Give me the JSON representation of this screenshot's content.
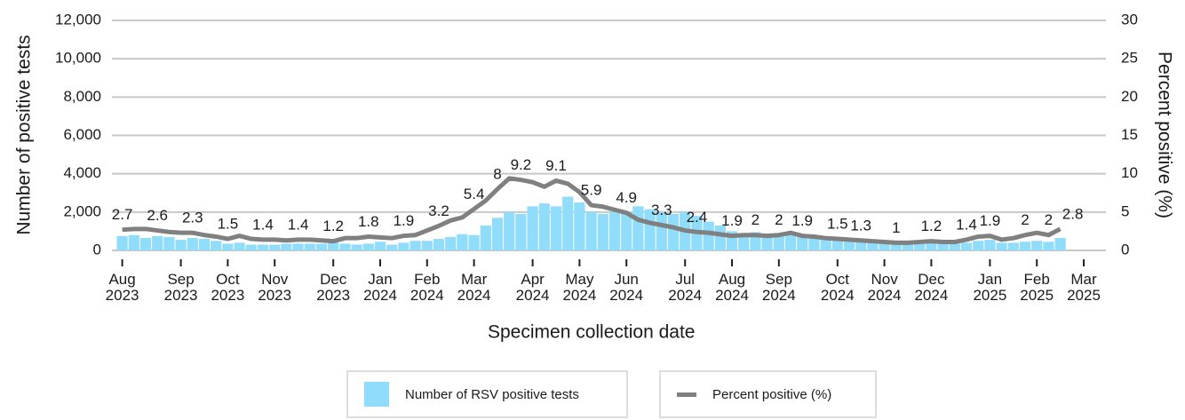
{
  "chart_data": {
    "type": "bar",
    "xlabel": "Specimen collection date",
    "ylabel": "Number of positive tests",
    "y2label": "Percent positive (%)",
    "categories": [
      "Aug 2023",
      null,
      null,
      null,
      null,
      "Sep 2023",
      null,
      null,
      null,
      "Oct 2023",
      null,
      null,
      null,
      "Nov 2023",
      null,
      null,
      null,
      null,
      "Dec 2023",
      null,
      null,
      null,
      "Jan 2024",
      null,
      null,
      null,
      "Feb 2024",
      null,
      null,
      null,
      "Mar 2024",
      null,
      null,
      null,
      null,
      "Apr 2024",
      null,
      null,
      null,
      "May 2024",
      null,
      null,
      null,
      "Jun 2024",
      null,
      null,
      null,
      null,
      "Jul 2024",
      null,
      null,
      null,
      "Aug 2024",
      null,
      null,
      null,
      "Sep 2024",
      null,
      null,
      null,
      null,
      "Oct 2024",
      null,
      null,
      null,
      "Nov 2024",
      null,
      null,
      null,
      "Dec 2024",
      null,
      null,
      null,
      null,
      "Jan 2025",
      null,
      null,
      null,
      "Feb 2025",
      null,
      null,
      null,
      "Mar 2025"
    ],
    "series": [
      {
        "name": "Number of RSV positive tests",
        "type": "bar",
        "color": "#8fdcfb",
        "values": [
          750,
          800,
          650,
          750,
          700,
          550,
          650,
          600,
          500,
          350,
          400,
          300,
          300,
          300,
          350,
          350,
          350,
          350,
          450,
          350,
          300,
          350,
          450,
          300,
          400,
          500,
          500,
          600,
          700,
          850,
          800,
          1300,
          1700,
          2000,
          1900,
          2300,
          2450,
          2300,
          2800,
          2500,
          2000,
          1900,
          2000,
          2000,
          2300,
          2150,
          2000,
          1900,
          2000,
          1800,
          1500,
          1300,
          1000,
          900,
          950,
          850,
          900,
          950,
          800,
          750,
          650,
          600,
          550,
          500,
          450,
          400,
          400,
          350,
          350,
          400,
          400,
          350,
          400,
          500,
          550,
          400,
          400,
          450,
          500,
          450,
          650,
          null,
          null
        ]
      },
      {
        "name": "Percent positive (%)",
        "type": "line",
        "axis": "y2",
        "color": "#808080",
        "values": [
          2.7,
          2.8,
          2.8,
          2.6,
          2.4,
          2.3,
          2.3,
          2.0,
          1.8,
          1.5,
          1.9,
          1.5,
          1.4,
          1.4,
          1.3,
          1.4,
          1.4,
          1.3,
          1.2,
          1.6,
          1.6,
          1.8,
          1.7,
          1.6,
          1.9,
          2.0,
          2.6,
          3.2,
          3.9,
          4.3,
          5.4,
          6.5,
          8.0,
          9.4,
          9.2,
          8.9,
          8.3,
          9.1,
          8.7,
          7.6,
          5.9,
          5.7,
          5.3,
          4.9,
          4.0,
          3.6,
          3.3,
          3.0,
          2.6,
          2.4,
          2.3,
          2.1,
          1.9,
          2.0,
          2.0,
          1.9,
          2.0,
          2.3,
          1.9,
          1.8,
          1.6,
          1.5,
          1.4,
          1.3,
          1.2,
          1.1,
          1.0,
          1.0,
          1.1,
          1.2,
          1.1,
          1.1,
          1.4,
          1.8,
          1.9,
          1.4,
          1.6,
          2.0,
          2.3,
          2.0,
          2.8,
          null,
          null
        ],
        "value_labels": [
          "2.7",
          null,
          null,
          "2.6",
          null,
          null,
          "2.3",
          null,
          null,
          "1.5",
          null,
          null,
          "1.4",
          null,
          null,
          "1.4",
          null,
          null,
          "1.2",
          null,
          null,
          "1.8",
          null,
          null,
          "1.9",
          null,
          null,
          "3.2",
          null,
          null,
          "5.4",
          null,
          "8",
          null,
          "9.2",
          null,
          null,
          "9.1",
          null,
          null,
          "5.9",
          null,
          null,
          "4.9",
          null,
          null,
          "3.3",
          null,
          null,
          "2.4",
          null,
          null,
          "1.9",
          null,
          "2",
          null,
          "2",
          null,
          "1.9",
          null,
          null,
          "1.5",
          null,
          "1.3",
          null,
          null,
          "1",
          null,
          null,
          "1.2",
          null,
          null,
          "1.4",
          null,
          "1.9",
          null,
          null,
          "2",
          null,
          "2",
          "2.8",
          null,
          null
        ]
      }
    ],
    "ylim": [
      0,
      12000
    ],
    "yticks": [
      0,
      {
        "value": 2000,
        "label": "2,000"
      },
      {
        "value": 4000,
        "label": "4,000"
      },
      {
        "value": 6000,
        "label": "6,000"
      },
      {
        "value": 8000,
        "label": "8,000"
      },
      {
        "value": 10000,
        "label": "10,000"
      },
      {
        "value": 12000,
        "label": "12,000"
      }
    ],
    "y2lim": [
      0,
      30
    ],
    "y2ticks": [
      0,
      5,
      10,
      15,
      20,
      25,
      30
    ],
    "grid": true
  }
}
